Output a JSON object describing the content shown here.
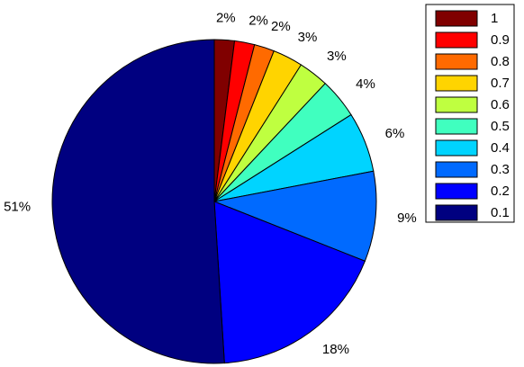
{
  "chart_data": {
    "type": "pie",
    "categories": [
      "1",
      "0.9",
      "0.8",
      "0.7",
      "0.6",
      "0.5",
      "0.4",
      "0.3",
      "0.2",
      "0.1"
    ],
    "values": [
      2,
      2,
      2,
      3,
      3,
      4,
      6,
      9,
      18,
      51
    ],
    "value_labels": [
      "2%",
      "2%",
      "2%",
      "3%",
      "3%",
      "4%",
      "6%",
      "9%",
      "18%",
      "51%"
    ],
    "colors": [
      "#800000",
      "#ff0000",
      "#ff6a00",
      "#ffd400",
      "#bfff40",
      "#40ffbf",
      "#00d4ff",
      "#006aff",
      "#0000ff",
      "#000080"
    ],
    "legend": "upper right"
  }
}
